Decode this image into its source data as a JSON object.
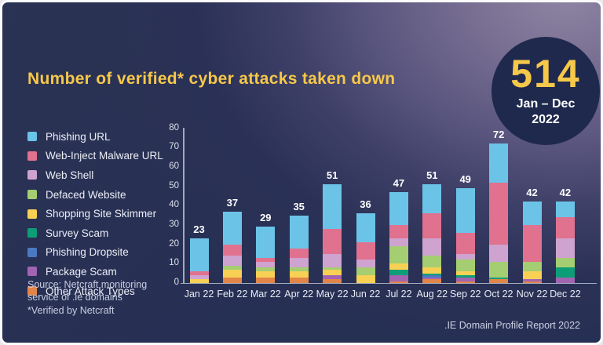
{
  "title": "Number of verified* cyber attacks taken down",
  "badge": {
    "value": "514",
    "period_line1": "Jan – Dec",
    "period_line2": "2022"
  },
  "source": {
    "line1": "Source: Netcraft monitoring",
    "line2": "service of .ie domains",
    "verified": "*Verified by Netcraft"
  },
  "footer": ".IE Domain Profile Report 2022",
  "colors": {
    "title": "#f6c84a",
    "badge_circle": "#1f294e",
    "background_dark": "#2b3156",
    "background_light": "#8e84a2",
    "axis": "#b9becf"
  },
  "chart_data": {
    "type": "bar",
    "stacked": true,
    "title": "Number of verified* cyber attacks taken down",
    "xlabel": "",
    "ylabel": "",
    "ylim": [
      0,
      80
    ],
    "yticks": [
      0,
      10,
      20,
      30,
      40,
      50,
      60,
      70,
      80
    ],
    "grid": false,
    "legend_position": "left",
    "categories": [
      "Jan 22",
      "Feb 22",
      "Mar 22",
      "Apr 22",
      "May 22",
      "Jun 22",
      "Jul 22",
      "Aug 22",
      "Sep 22",
      "Oct 22",
      "Nov 22",
      "Dec 22"
    ],
    "totals": [
      23,
      37,
      29,
      35,
      51,
      36,
      47,
      51,
      49,
      72,
      42,
      42
    ],
    "annual_total": 514,
    "series": [
      {
        "name": "Phishing URL",
        "color": "#6bc4e8",
        "values": [
          17,
          17,
          16,
          17,
          23,
          15,
          17,
          15,
          23,
          20,
          12,
          8
        ]
      },
      {
        "name": "Web-Inject Malware URL",
        "color": "#e0718f",
        "values": [
          2,
          6,
          2,
          5,
          13,
          9,
          7,
          13,
          11,
          32,
          19,
          11
        ]
      },
      {
        "name": "Web Shell",
        "color": "#cfa3cf",
        "values": [
          2,
          5,
          3,
          5,
          7,
          4,
          4,
          9,
          3,
          9,
          0,
          10
        ]
      },
      {
        "name": "Defaced Website",
        "color": "#a5cd72",
        "values": [
          0,
          2,
          2,
          2,
          1,
          4,
          9,
          6,
          6,
          8,
          5,
          5
        ]
      },
      {
        "name": "Shopping Site Skimmer",
        "color": "#f8d054",
        "values": [
          2,
          4,
          3,
          3,
          3,
          4,
          3,
          3,
          2,
          0,
          4,
          0
        ]
      },
      {
        "name": "Survey Scam",
        "color": "#0d9e77",
        "values": [
          0,
          0,
          0,
          0,
          0,
          0,
          3,
          1,
          1,
          1,
          0,
          5
        ]
      },
      {
        "name": "Phishing Dropsite",
        "color": "#4a7bc1",
        "values": [
          0,
          0,
          0,
          0,
          0,
          0,
          0,
          1,
          0,
          0,
          0,
          0
        ]
      },
      {
        "name": "Package Scam",
        "color": "#a264b2",
        "values": [
          0,
          0,
          0,
          0,
          2,
          0,
          3,
          1,
          2,
          0,
          1,
          3
        ]
      },
      {
        "name": "Other Attack Types",
        "color": "#e28549",
        "values": [
          0,
          3,
          3,
          3,
          2,
          0,
          1,
          2,
          1,
          2,
          1,
          0
        ]
      }
    ],
    "stack_order_note": "bars stack with last series at bottom (reverse of legend order); Phishing URL is the top segment"
  }
}
